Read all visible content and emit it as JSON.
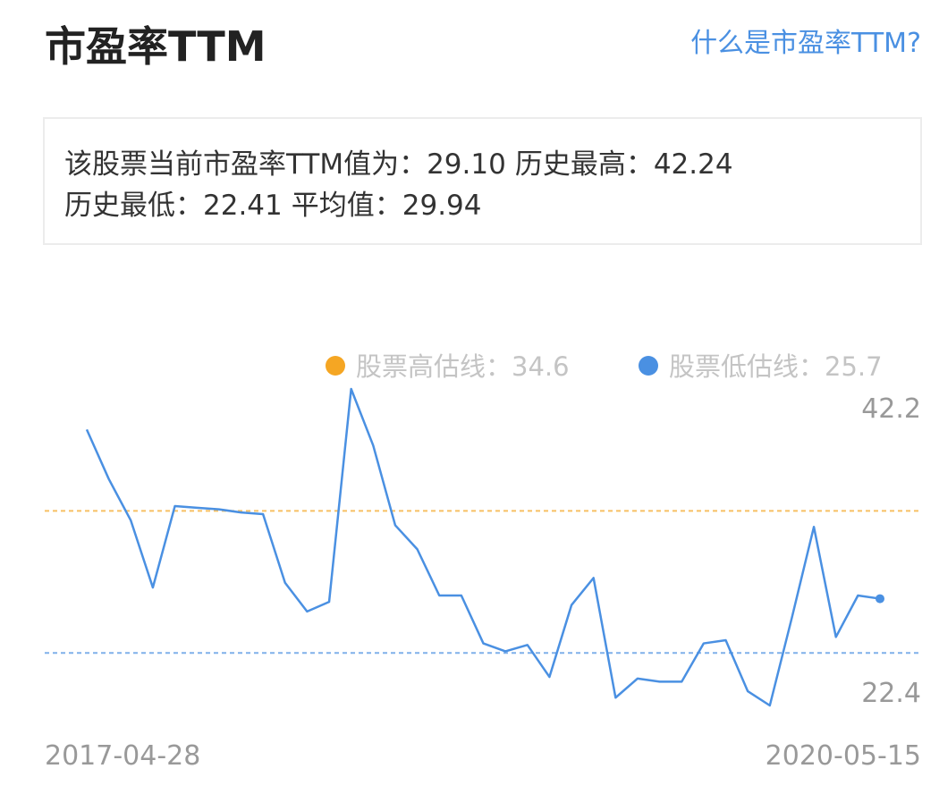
{
  "header": {
    "title": "市盈率TTM",
    "link": "什么是市盈率TTM?"
  },
  "summary": [
    {
      "label": "该股票当前市盈率TTM值为：",
      "value": "29.10"
    },
    {
      "label": "历史最高：",
      "value": "42.24"
    },
    {
      "label": "历史最低：",
      "value": "22.41"
    },
    {
      "label": "平均值：",
      "value": "29.94"
    }
  ],
  "chart_data": {
    "type": "line",
    "categories": [
      "2017-04-28",
      null,
      null,
      null,
      null,
      null,
      null,
      null,
      null,
      null,
      null,
      null,
      null,
      null,
      null,
      null,
      null,
      null,
      null,
      null,
      null,
      null,
      null,
      null,
      null,
      null,
      null,
      null,
      null,
      null,
      null,
      null,
      null,
      null,
      null,
      null,
      "2020-05-15"
    ],
    "series": [
      {
        "name": "市盈率TTM",
        "color": "#4a90e2",
        "values": [
          39.7,
          36.6,
          34.0,
          29.8,
          34.9,
          34.8,
          34.7,
          34.5,
          34.4,
          30.1,
          28.3,
          28.9,
          42.24,
          38.7,
          33.7,
          32.2,
          29.3,
          29.3,
          26.3,
          25.8,
          26.2,
          24.2,
          28.7,
          30.4,
          22.9,
          24.1,
          23.9,
          23.9,
          26.3,
          26.5,
          23.3,
          22.41,
          27.9,
          33.6,
          26.7,
          29.3,
          29.1
        ]
      }
    ],
    "reference_lines": [
      {
        "name": "股票高估线：",
        "value": 34.6,
        "color": "#f5a623"
      },
      {
        "name": "股票低估线：",
        "value": 25.7,
        "color": "#4a90e2"
      }
    ],
    "ylim": [
      22.41,
      42.24
    ],
    "yticks": [
      {
        "value": 42.24,
        "label": "42.2"
      },
      {
        "value": 22.41,
        "label": "22.4"
      }
    ]
  }
}
